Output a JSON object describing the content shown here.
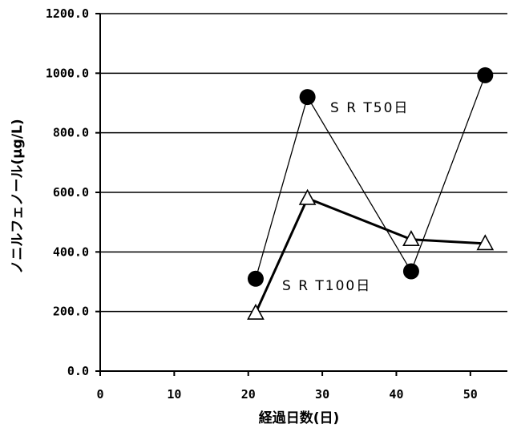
{
  "chart_data": {
    "type": "line",
    "title": "",
    "xlabel": "経過日数(日)",
    "ylabel": "ノニルフェノール(μg/L)",
    "xlim": [
      0,
      55
    ],
    "ylim": [
      0,
      1200
    ],
    "x_ticks": [
      0,
      10,
      20,
      30,
      40,
      50
    ],
    "x_tick_labels": [
      "0",
      "10",
      "20",
      "30",
      "40",
      "50"
    ],
    "y_ticks": [
      0,
      200,
      400,
      600,
      800,
      1000,
      1200
    ],
    "y_tick_labels": [
      "0.0",
      "200.0",
      "400.0",
      "600.0",
      "800.0",
      "1000.0",
      "1200.0"
    ],
    "grid": "horizontal",
    "legend": "none",
    "series": [
      {
        "name": "SRT50日",
        "label": "S R T50日",
        "marker": "filled-circle",
        "line_width": "thin",
        "x": [
          21,
          28,
          42,
          52
        ],
        "y": [
          310,
          920,
          335,
          993
        ]
      },
      {
        "name": "SRT100日",
        "label": "S R T100日",
        "marker": "open-triangle",
        "line_width": "thick",
        "x": [
          21,
          28,
          42,
          52
        ],
        "y": [
          195,
          580,
          442,
          428
        ]
      }
    ]
  }
}
